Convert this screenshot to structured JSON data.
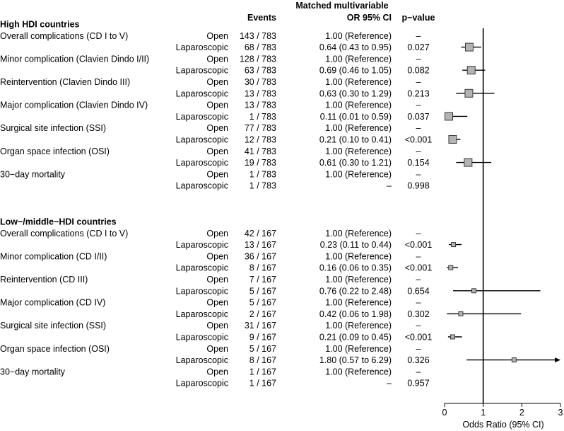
{
  "chart_data": {
    "type": "forest",
    "headers": {
      "events": "Events",
      "or_line1": "Matched multivariable",
      "or_line2": "OR 95% CI",
      "pvalue": "p−value"
    },
    "xaxis": {
      "label": "Odds Ratio (95% CI)",
      "xlim": [
        0,
        3
      ],
      "ticks": [
        0,
        1,
        2,
        3
      ],
      "tick_labels": [
        "0",
        "1",
        "2",
        "3"
      ],
      "reference_line": 1
    },
    "sections": [
      {
        "title": "High HDI countries",
        "outcomes": [
          {
            "name": "Overall complications (CD I to V)",
            "rows": [
              {
                "group": "Open",
                "events": "143 / 783",
                "or_text": "1.00 (Reference)",
                "p": "–"
              },
              {
                "group": "Laparoscopic",
                "events": "68 / 783",
                "or_text": "0.64 (0.43 to 0.95)",
                "p": "0.027",
                "or": 0.64,
                "lo": 0.43,
                "hi": 0.95
              }
            ]
          },
          {
            "name": "Minor complication (Clavien Dindo I/II)",
            "rows": [
              {
                "group": "Open",
                "events": "128 / 783",
                "or_text": "1.00 (Reference)",
                "p": "–"
              },
              {
                "group": "Laparoscopic",
                "events": "63 / 783",
                "or_text": "0.69 (0.46 to 1.05)",
                "p": "0.082",
                "or": 0.69,
                "lo": 0.46,
                "hi": 1.05
              }
            ]
          },
          {
            "name": "Reintervention (Clavien Dindo III)",
            "rows": [
              {
                "group": "Open",
                "events": "30 / 783",
                "or_text": "1.00 (Reference)",
                "p": "–"
              },
              {
                "group": "Laparoscopic",
                "events": "13 / 783",
                "or_text": "0.63 (0.30 to 1.29)",
                "p": "0.213",
                "or": 0.63,
                "lo": 0.3,
                "hi": 1.29
              }
            ]
          },
          {
            "name": "Major complication (Clavien Dindo IV)",
            "rows": [
              {
                "group": "Open",
                "events": "13 / 783",
                "or_text": "1.00 (Reference)",
                "p": "–"
              },
              {
                "group": "Laparoscopic",
                "events": "1 / 783",
                "or_text": "0.11 (0.01 to 0.59)",
                "p": "0.037",
                "or": 0.11,
                "lo": 0.01,
                "hi": 0.59
              }
            ]
          },
          {
            "name": "Surgical site infection (SSI)",
            "rows": [
              {
                "group": "Open",
                "events": "77 / 783",
                "or_text": "1.00 (Reference)",
                "p": "–"
              },
              {
                "group": "Laparoscopic",
                "events": "12 / 783",
                "or_text": "0.21 (0.10 to 0.41)",
                "p": "<0.001",
                "or": 0.21,
                "lo": 0.1,
                "hi": 0.41
              }
            ]
          },
          {
            "name": "Organ space infection (OSI)",
            "rows": [
              {
                "group": "Open",
                "events": "41 / 783",
                "or_text": "1.00 (Reference)",
                "p": "–"
              },
              {
                "group": "Laparoscopic",
                "events": "19 / 783",
                "or_text": "0.61 (0.30 to 1.21)",
                "p": "0.154",
                "or": 0.61,
                "lo": 0.3,
                "hi": 1.21
              }
            ]
          },
          {
            "name": "30−day mortality",
            "rows": [
              {
                "group": "Open",
                "events": "1 / 783",
                "or_text": "1.00 (Reference)",
                "p": "–"
              },
              {
                "group": "Laparoscopic",
                "events": "1 / 783",
                "or_text": "–",
                "p": "0.998"
              }
            ]
          }
        ]
      },
      {
        "title": "Low−/middle−HDI countries",
        "outcomes": [
          {
            "name": "Overall complications (CD I to V)",
            "rows": [
              {
                "group": "Open",
                "events": "42 / 167",
                "or_text": "1.00 (Reference)",
                "p": "–"
              },
              {
                "group": "Laparoscopic",
                "events": "13 / 167",
                "or_text": "0.23 (0.11 to 0.44)",
                "p": "<0.001",
                "or": 0.23,
                "lo": 0.11,
                "hi": 0.44
              }
            ]
          },
          {
            "name": "Minor complication (CD I/II)",
            "rows": [
              {
                "group": "Open",
                "events": "36 / 167",
                "or_text": "1.00 (Reference)",
                "p": "–"
              },
              {
                "group": "Laparoscopic",
                "events": "8 / 167",
                "or_text": "0.16 (0.06 to 0.35)",
                "p": "<0.001",
                "or": 0.16,
                "lo": 0.06,
                "hi": 0.35
              }
            ]
          },
          {
            "name": "Reintervention (CD III)",
            "rows": [
              {
                "group": "Open",
                "events": "7 / 167",
                "or_text": "1.00 (Reference)",
                "p": "–"
              },
              {
                "group": "Laparoscopic",
                "events": "5 / 167",
                "or_text": "0.76 (0.22 to 2.48)",
                "p": "0.654",
                "or": 0.76,
                "lo": 0.22,
                "hi": 2.48
              }
            ]
          },
          {
            "name": "Major complication (CD IV)",
            "rows": [
              {
                "group": "Open",
                "events": "5 / 167",
                "or_text": "1.00 (Reference)",
                "p": "–"
              },
              {
                "group": "Laparoscopic",
                "events": "2 / 167",
                "or_text": "0.42 (0.06 to 1.98)",
                "p": "0.302",
                "or": 0.42,
                "lo": 0.06,
                "hi": 1.98
              }
            ]
          },
          {
            "name": "Surgical site infection (SSI)",
            "rows": [
              {
                "group": "Open",
                "events": "31 / 167",
                "or_text": "1.00 (Reference)",
                "p": "–"
              },
              {
                "group": "Laparoscopic",
                "events": "9 / 167",
                "or_text": "0.21 (0.09 to 0.45)",
                "p": "<0.001",
                "or": 0.21,
                "lo": 0.09,
                "hi": 0.45
              }
            ]
          },
          {
            "name": "Organ space infection (OSI)",
            "rows": [
              {
                "group": "Open",
                "events": "5 / 167",
                "or_text": "1.00 (Reference)",
                "p": "–"
              },
              {
                "group": "Laparoscopic",
                "events": "8 / 167",
                "or_text": "1.80 (0.57 to 6.29)",
                "p": "0.326",
                "or": 1.8,
                "lo": 0.57,
                "hi": 6.29,
                "ci_truncated": true
              }
            ]
          },
          {
            "name": "30−day mortality",
            "rows": [
              {
                "group": "Open",
                "events": "1 / 167",
                "or_text": "1.00 (Reference)",
                "p": "–"
              },
              {
                "group": "Laparoscopic",
                "events": "1 / 167",
                "or_text": "–",
                "p": "0.957"
              }
            ]
          }
        ]
      }
    ],
    "colors": {
      "marker_fill": "#b3b3b3",
      "marker_stroke": "#3a3a3a",
      "line": "#000000"
    }
  }
}
